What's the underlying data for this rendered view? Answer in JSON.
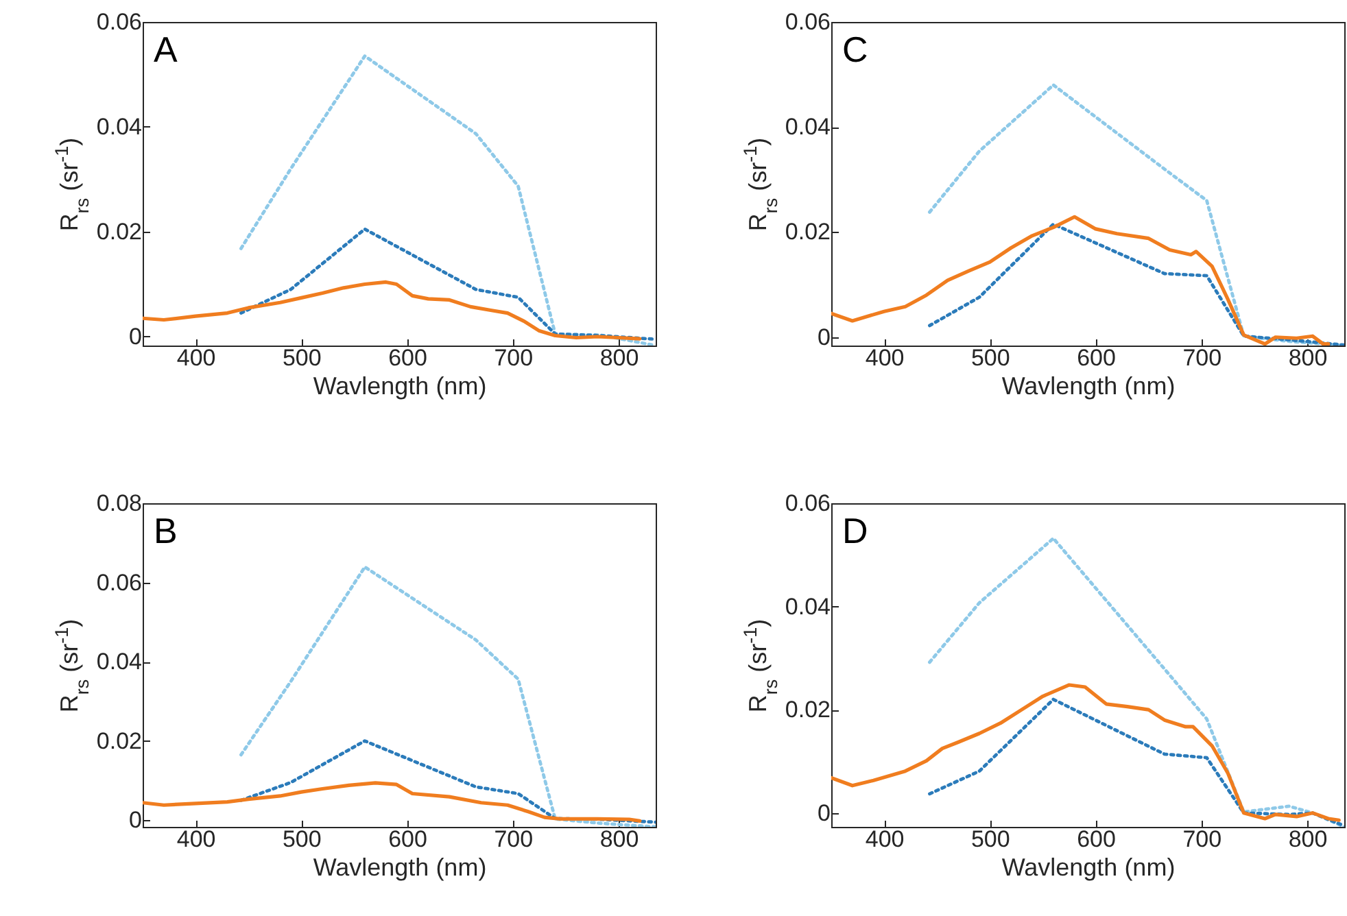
{
  "chart_data": [
    {
      "type": "line",
      "title": "A",
      "xlabel": "Wavlength (nm)",
      "ylabel": "R$_{rs}$ (sr$^{-1}$)",
      "xlim": [
        350,
        835
      ],
      "ylim": [
        -0.0017,
        0.06
      ],
      "xticks": [
        400,
        500,
        600,
        700,
        800
      ],
      "yticks": [
        0,
        0.02,
        0.04,
        0.06
      ],
      "series": [
        {
          "color": "#8ec9e8",
          "line_style": "dotted",
          "x": [
            443,
            490,
            560,
            665,
            705,
            740,
            783,
            835
          ],
          "values": [
            0.0168,
            0.032,
            0.0535,
            0.0387,
            0.0287,
            0.0005,
            0.0003,
            -0.0017
          ]
        },
        {
          "color": "#2b7bba",
          "line_style": "dotted",
          "x": [
            443,
            490,
            560,
            665,
            705,
            740,
            783,
            835
          ],
          "values": [
            0.0045,
            0.009,
            0.0205,
            0.009,
            0.0075,
            0.0005,
            0.0002,
            -0.0005
          ]
        },
        {
          "color": "#f07d1f",
          "line_style": "solid",
          "x": [
            350,
            370,
            400,
            430,
            450,
            480,
            500,
            520,
            540,
            560,
            580,
            590,
            605,
            620,
            640,
            660,
            680,
            695,
            710,
            725,
            740,
            760,
            780,
            800,
            820
          ],
          "values": [
            0.0035,
            0.0032,
            0.0039,
            0.0045,
            0.0055,
            0.0065,
            0.0074,
            0.0083,
            0.0093,
            0.01,
            0.0104,
            0.01,
            0.0078,
            0.0072,
            0.007,
            0.0057,
            0.005,
            0.0045,
            0.003,
            0.0011,
            0.0002,
            -0.0002,
            0,
            -0.0002,
            -0.0004
          ]
        }
      ]
    },
    {
      "type": "line",
      "title": "C",
      "xlabel": "Wavlength (nm)",
      "ylabel": "R$_{rs}$ (sr$^{-1}$)",
      "xlim": [
        350,
        835
      ],
      "ylim": [
        -0.0016,
        0.06
      ],
      "xticks": [
        400,
        500,
        600,
        700,
        800
      ],
      "yticks": [
        0,
        0.02,
        0.04,
        0.06
      ],
      "series": [
        {
          "color": "#8ec9e8",
          "line_style": "dotted",
          "x": [
            443,
            490,
            560,
            665,
            705,
            740,
            783,
            835
          ],
          "values": [
            0.0238,
            0.0354,
            0.048,
            0.032,
            0.026,
            0.0002,
            -0.0008,
            -0.0016
          ]
        },
        {
          "color": "#2b7bba",
          "line_style": "dotted",
          "x": [
            443,
            490,
            560,
            665,
            705,
            740,
            783,
            835
          ],
          "values": [
            0.0022,
            0.0076,
            0.0215,
            0.0121,
            0.0117,
            0.0002,
            -0.0005,
            -0.0015
          ]
        },
        {
          "color": "#f07d1f",
          "line_style": "solid",
          "x": [
            350,
            370,
            400,
            420,
            440,
            460,
            480,
            500,
            520,
            540,
            560,
            580,
            600,
            620,
            650,
            670,
            690,
            695,
            710,
            725,
            740,
            760,
            770,
            790,
            805,
            815,
            820
          ],
          "values": [
            0.0045,
            0.0031,
            0.0049,
            0.0058,
            0.008,
            0.0108,
            0.0126,
            0.0143,
            0.017,
            0.0193,
            0.0209,
            0.0229,
            0.0206,
            0.0197,
            0.0188,
            0.0166,
            0.0157,
            0.0163,
            0.0135,
            0.0072,
            0.0004,
            -0.0013,
            0,
            -0.0002,
            0.0002,
            -0.0013,
            -0.0013
          ]
        }
      ]
    },
    {
      "type": "line",
      "title": "B",
      "xlabel": "Wavlength (nm)",
      "ylabel": "R$_{rs}$ (sr$^{-1}$)",
      "xlim": [
        350,
        835
      ],
      "ylim": [
        -0.0017,
        0.08
      ],
      "xticks": [
        400,
        500,
        600,
        700,
        800
      ],
      "yticks": [
        0,
        0.02,
        0.04,
        0.06,
        0.08
      ],
      "series": [
        {
          "color": "#8ec9e8",
          "line_style": "dotted",
          "x": [
            443,
            490,
            560,
            665,
            705,
            740,
            783,
            835
          ],
          "values": [
            0.0165,
            0.035,
            0.0639,
            0.0455,
            0.0356,
            0.0003,
            -0.0008,
            -0.0017
          ]
        },
        {
          "color": "#2b7bba",
          "line_style": "dotted",
          "x": [
            443,
            490,
            560,
            665,
            705,
            740,
            783,
            835
          ],
          "values": [
            0.005,
            0.0095,
            0.02,
            0.0084,
            0.0067,
            0.0004,
            0.0002,
            -0.0005
          ]
        },
        {
          "color": "#f07d1f",
          "line_style": "solid",
          "x": [
            350,
            370,
            400,
            430,
            450,
            480,
            500,
            520,
            545,
            570,
            590,
            605,
            640,
            670,
            695,
            715,
            730,
            745,
            780,
            810,
            820
          ],
          "values": [
            0.0044,
            0.0038,
            0.0042,
            0.0046,
            0.0053,
            0.0061,
            0.0071,
            0.0079,
            0.0088,
            0.0094,
            0.009,
            0.0067,
            0.0059,
            0.0044,
            0.0038,
            0.0021,
            0.0007,
            0.0003,
            0.0003,
            0.0002,
            -0.0002
          ]
        }
      ]
    },
    {
      "type": "line",
      "title": "D",
      "xlabel": "Wavlength (nm)",
      "ylabel": "R$_{rs}$ (sr$^{-1}$)",
      "xlim": [
        350,
        835
      ],
      "ylim": [
        -0.0027,
        0.06
      ],
      "xticks": [
        400,
        500,
        600,
        700,
        800
      ],
      "yticks": [
        0,
        0.02,
        0.04,
        0.06
      ],
      "series": [
        {
          "color": "#8ec9e8",
          "line_style": "dotted",
          "x": [
            443,
            490,
            560,
            665,
            705,
            740,
            783,
            805,
            835
          ],
          "values": [
            0.0292,
            0.0407,
            0.0532,
            0.0279,
            0.0182,
            0.0002,
            0.0013,
            0,
            -0.0027
          ]
        },
        {
          "color": "#2b7bba",
          "line_style": "dotted",
          "x": [
            443,
            490,
            560,
            665,
            705,
            740,
            783,
            805,
            835
          ],
          "values": [
            0.0037,
            0.0081,
            0.022,
            0.0114,
            0.0107,
            0,
            -0.0003,
            0,
            -0.0025
          ]
        },
        {
          "color": "#f07d1f",
          "line_style": "solid",
          "x": [
            350,
            370,
            390,
            420,
            440,
            455,
            470,
            490,
            510,
            530,
            550,
            575,
            590,
            610,
            630,
            650,
            665,
            685,
            692,
            710,
            725,
            740,
            760,
            770,
            790,
            805,
            820,
            830
          ],
          "values": [
            0.0068,
            0.0053,
            0.0063,
            0.0081,
            0.0101,
            0.0125,
            0.0137,
            0.0154,
            0.0174,
            0.02,
            0.0226,
            0.0248,
            0.0244,
            0.0211,
            0.0206,
            0.02,
            0.018,
            0.0167,
            0.0167,
            0.013,
            0.0077,
            0,
            -0.0011,
            -0.0003,
            -0.0007,
            0,
            -0.0011,
            -0.0014
          ]
        }
      ]
    }
  ]
}
